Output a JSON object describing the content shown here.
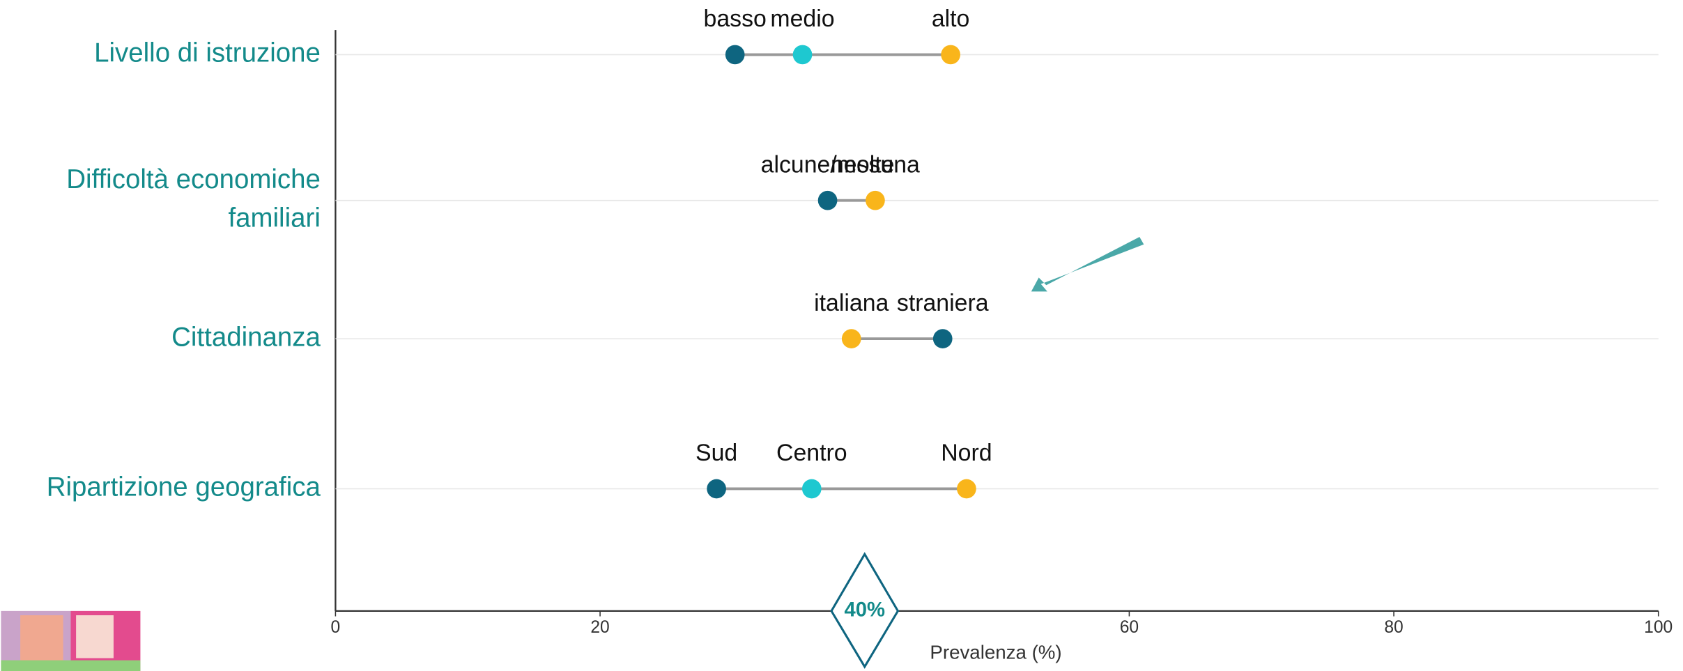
{
  "chart_data": {
    "type": "dot",
    "xlabel": "Prevalenza (%)",
    "xlim": [
      0,
      100
    ],
    "xticks": [
      0,
      20,
      40,
      60,
      80,
      100
    ],
    "grid": true,
    "groups": [
      {
        "label": [
          "Livello di istruzione"
        ],
        "points": [
          {
            "name": "basso",
            "value": 30.2,
            "color": "#0e6580"
          },
          {
            "name": "medio",
            "value": 35.3,
            "color": "#1ec8d0"
          },
          {
            "name": "alto",
            "value": 46.5,
            "color": "#f9b51b"
          }
        ]
      },
      {
        "label": [
          "Difficoltà economiche",
          "familiari"
        ],
        "points": [
          {
            "name": "alcune/molte",
            "value": 37.2,
            "color": "#0e6580"
          },
          {
            "name": "nessuna",
            "value": 40.8,
            "color": "#f9b51b"
          }
        ]
      },
      {
        "label": [
          "Cittadinanza"
        ],
        "points": [
          {
            "name": "italiana",
            "value": 39.0,
            "color": "#f9b51b"
          },
          {
            "name": "straniera",
            "value": 45.9,
            "color": "#0e6580"
          }
        ]
      },
      {
        "label": [
          "Ripartizione geografica"
        ],
        "points": [
          {
            "name": "Sud",
            "value": 28.8,
            "color": "#0e6580"
          },
          {
            "name": "Centro",
            "value": 36.0,
            "color": "#1ec8d0"
          },
          {
            "name": "Nord",
            "value": 47.7,
            "color": "#f9b51b"
          }
        ]
      }
    ],
    "reference": {
      "value": 40,
      "label": "40%"
    }
  }
}
